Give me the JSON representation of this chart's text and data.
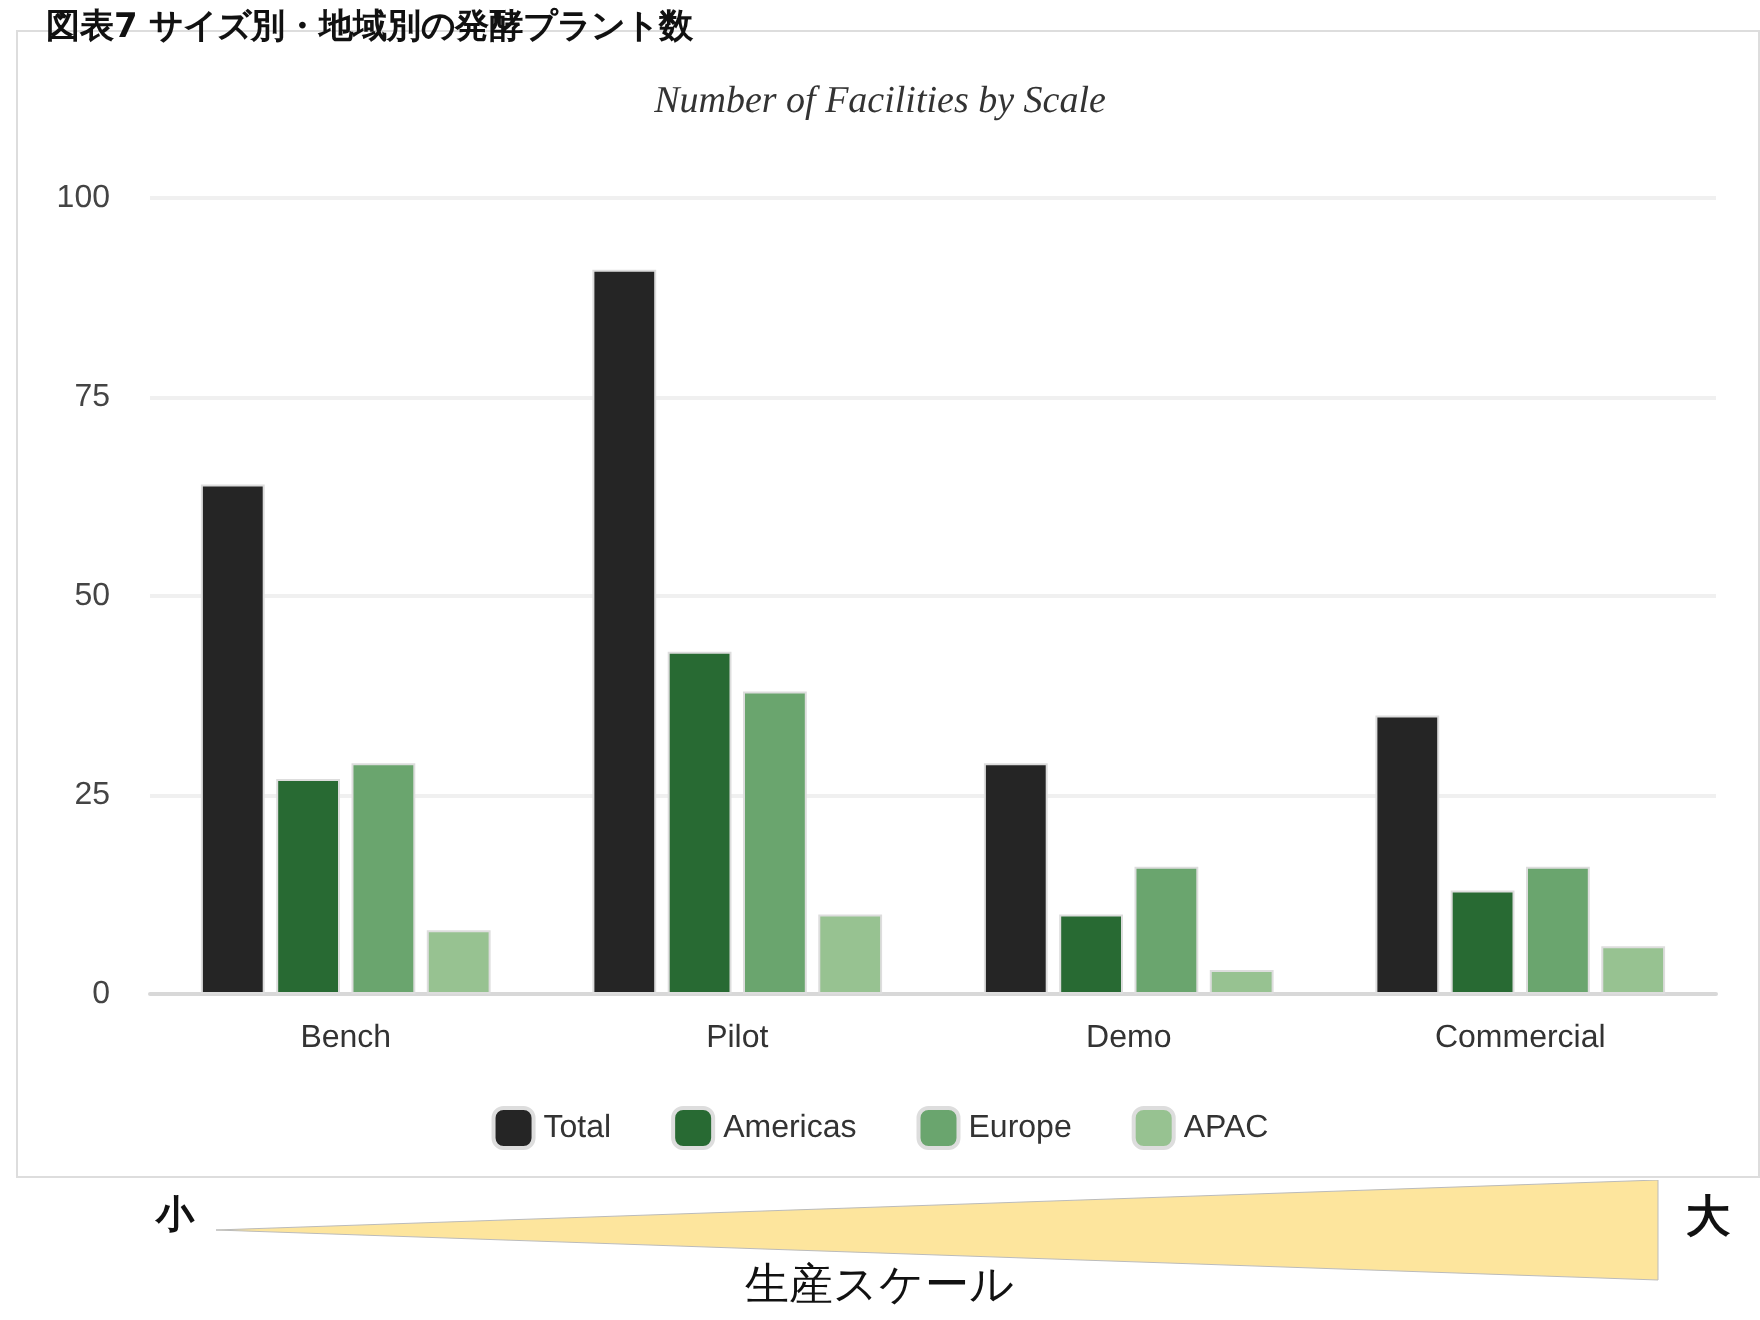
{
  "chart_data": {
    "type": "bar",
    "title": "図表7 サイズ別・地域別の発酵プラント数",
    "subtitle": "Number of Facilities by Scale",
    "xlabel": "生産スケール",
    "categories": [
      "Bench",
      "Pilot",
      "Demo",
      "Commercial"
    ],
    "series": [
      {
        "name": "Total",
        "color": "#252525",
        "values": [
          64,
          91,
          29,
          35
        ]
      },
      {
        "name": "Americas",
        "color": "#286a33",
        "values": [
          27,
          43,
          10,
          13
        ]
      },
      {
        "name": "Europe",
        "color": "#6aa56e",
        "values": [
          29,
          38,
          16,
          16
        ]
      },
      {
        "name": "APAC",
        "color": "#97c291",
        "values": [
          8,
          10,
          3,
          6
        ]
      }
    ],
    "ylim": [
      0,
      100
    ],
    "yticks": [
      0,
      25,
      50,
      75,
      100
    ],
    "grid": "y",
    "legend": "bottom",
    "annotations": [
      "小",
      "大"
    ]
  }
}
